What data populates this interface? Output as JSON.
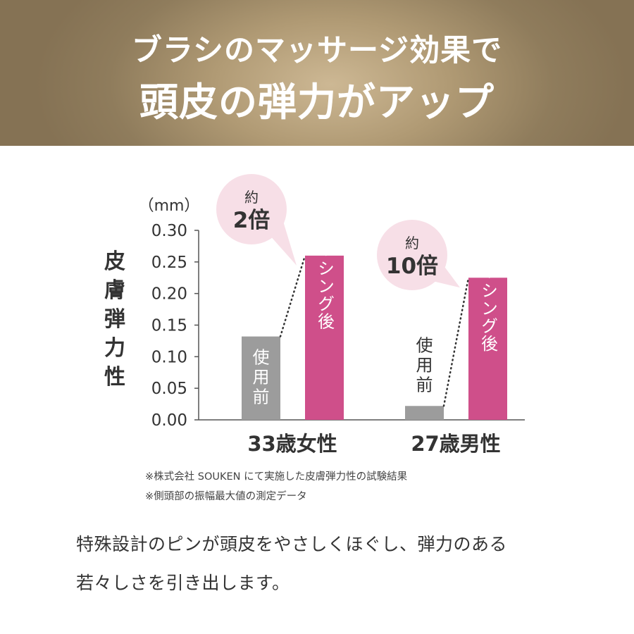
{
  "header": {
    "line1": "ブラシのマッサージ効果で",
    "line2": "頭皮の弾力がアップ"
  },
  "colors": {
    "before_bar": "#9c9c9c",
    "after_bar": "#cf4f8a",
    "bubble": "#f7dfe7",
    "axis": "#555555"
  },
  "chart_data": {
    "type": "bar",
    "unit": "（mm）",
    "ylabel": "皮膚弾力性",
    "ylim": [
      0,
      0.3
    ],
    "yticks": [
      "0.30",
      "0.25",
      "0.20",
      "0.15",
      "0.10",
      "0.05",
      "0.00"
    ],
    "categories": [
      "33歳女性",
      "27歳男性"
    ],
    "series": [
      {
        "name": "使用前",
        "values": [
          0.132,
          0.022
        ]
      },
      {
        "name": "ブラッシング後",
        "values": [
          0.26,
          0.225
        ]
      }
    ],
    "annotations": [
      {
        "top": "約",
        "bottom": "2倍"
      },
      {
        "top": "約",
        "bottom": "10倍"
      }
    ]
  },
  "notes": [
    "※株式会社 SOUKEN にて実施した皮膚弾力性の試験結果",
    "※側頭部の振幅最大値の測定データ"
  ],
  "description": [
    "特殊設計のピンが頭皮をやさしくほぐし、弾力のある",
    "若々しさを引き出します。"
  ]
}
